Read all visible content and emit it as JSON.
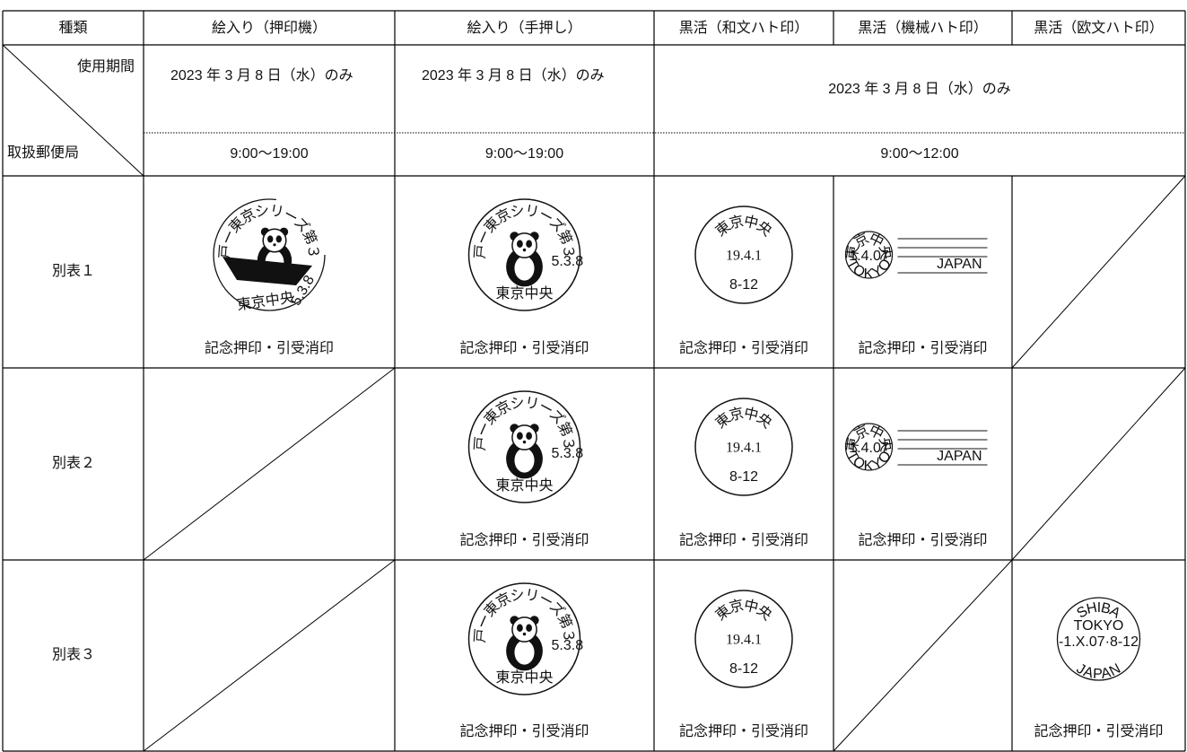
{
  "header": {
    "columns": [
      "種類",
      "絵入り（押印機）",
      "絵入り（手押し）",
      "黒活（和文ハト印）",
      "黒活（機械ハト印）",
      "黒活（欧文ハト印）"
    ]
  },
  "corner": {
    "top": "使用期間",
    "bottom": "取扱郵便局"
  },
  "periods": [
    {
      "date": "2023 年 3 月 8 日（水）のみ",
      "hours": "9:00～19:00"
    },
    {
      "date": "2023 年 3 月 8 日（水）のみ",
      "hours": "9:00～19:00"
    },
    {
      "date": "2023 年 3 月 8 日（水）のみ",
      "hours": "9:00～12:00"
    }
  ],
  "rows": [
    {
      "label": "別表１",
      "cells": [
        {
          "series": "江戸ー東京シリーズ第３集",
          "office": "東京中央",
          "date": "5.3.8",
          "caption": "記念押印・引受消印"
        },
        {
          "series": "江戸ー東京シリーズ第３集",
          "office": "東京中央",
          "date": "5.3.8",
          "caption": "記念押印・引受消印"
        },
        {
          "office": "東京中央",
          "date": "19.4.1",
          "time": "8-12",
          "caption": "記念押印・引受消印"
        },
        {
          "office": "東京中央",
          "date": "1.4.07",
          "city": "TOKYO",
          "country": "JAPAN",
          "caption": "記念押印・引受消印"
        },
        null
      ]
    },
    {
      "label": "別表２",
      "cells": [
        null,
        {
          "series": "江戸ー東京シリーズ第３集",
          "office": "東京中央",
          "date": "5.3.8",
          "caption": "記念押印・引受消印"
        },
        {
          "office": "東京中央",
          "date": "19.4.1",
          "time": "8-12",
          "caption": "記念押印・引受消印"
        },
        {
          "office": "東京中央",
          "date": "1.4.07",
          "city": "TOKYO",
          "country": "JAPAN",
          "caption": "記念押印・引受消印"
        },
        null
      ]
    },
    {
      "label": "別表３",
      "cells": [
        null,
        {
          "series": "江戸ー東京シリーズ第３集",
          "office": "東京中央",
          "date": "5.3.8",
          "caption": "記念押印・引受消印"
        },
        {
          "office": "東京中央",
          "date": "19.4.1",
          "time": "8-12",
          "caption": "記念押印・引受消印"
        },
        null,
        {
          "office": "SHIBA",
          "city": "TOKYO",
          "date": "-1.X.07·8-12",
          "country": "JAPAN",
          "caption": "記念押印・引受消印"
        }
      ]
    }
  ]
}
